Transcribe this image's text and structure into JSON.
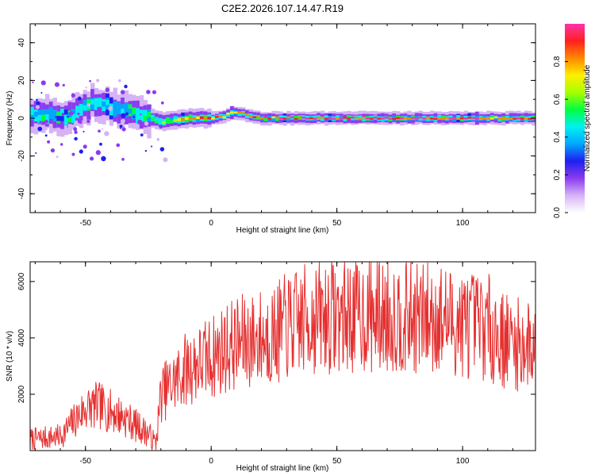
{
  "title": "C2E2.2026.107.14.47.R19",
  "colors": {
    "line": "#e53030",
    "axis": "#000000",
    "colormap": [
      "#ffffff",
      "#d6b3f5",
      "#8a3cf0",
      "#1f1ff0",
      "#00a6ff",
      "#00f0f0",
      "#00ff40",
      "#a8ff00",
      "#ffee00",
      "#ff8800",
      "#ff1f1f",
      "#ff33aa"
    ]
  },
  "chart_data": [
    {
      "type": "heatmap",
      "name": "spectrogram",
      "xlabel": "Height of straight line (km)",
      "ylabel": "Frequency (Hz)",
      "xlim": [
        -72,
        129
      ],
      "ylim": [
        -50,
        50
      ],
      "xticks": [
        -50,
        0,
        50,
        100
      ],
      "yticks": [
        -40,
        -20,
        0,
        20,
        40
      ],
      "xtick_labels": [
        "-50",
        "0",
        "50",
        "100"
      ],
      "ytick_labels": [
        "-40",
        "-20",
        "0",
        "20",
        "40"
      ],
      "ridge": {
        "x": [
          -72,
          -65,
          -60,
          -55,
          -52,
          -48,
          -45,
          -40,
          -35,
          -30,
          -25,
          -20,
          -15,
          -10,
          -5,
          0,
          5,
          7,
          10,
          15,
          20,
          30,
          50,
          70,
          90,
          110,
          129
        ],
        "y": [
          2,
          2,
          1,
          2,
          5,
          8,
          7,
          6,
          4,
          2,
          0,
          -2,
          -1,
          0,
          0,
          0,
          1,
          3,
          3,
          1,
          0,
          0,
          0,
          0,
          0,
          0,
          0
        ],
        "amplitude": [
          0.35,
          0.4,
          0.3,
          0.4,
          0.45,
          0.5,
          0.45,
          0.4,
          0.4,
          0.4,
          0.5,
          0.55,
          0.65,
          0.8,
          0.85,
          0.8,
          0.75,
          0.8,
          0.8,
          0.75,
          0.85,
          0.9,
          0.9,
          0.95,
          0.9,
          0.85,
          0.9
        ]
      },
      "colorbar": {
        "label": "Normalized spectral amplitude",
        "range": [
          0,
          1
        ],
        "ticks": [
          0.0,
          0.2,
          0.4,
          0.6,
          0.8
        ],
        "tick_labels": [
          "0.0",
          "0.2",
          "0.4",
          "0.6",
          "0.8"
        ]
      }
    },
    {
      "type": "line",
      "name": "snr",
      "xlabel": "Height of straight line (km)",
      "ylabel": "SNR (10 * v/v)",
      "xlim": [
        -72,
        129
      ],
      "ylim": [
        0,
        6700
      ],
      "xticks": [
        -50,
        0,
        50,
        100
      ],
      "yticks": [
        2000,
        4000,
        6000
      ],
      "xtick_labels": [
        "-50",
        "0",
        "50",
        "100"
      ],
      "ytick_labels": [
        "2000",
        "4000",
        "6000"
      ],
      "series": [
        {
          "name": "SNR",
          "envelope_x": [
            -72,
            -60,
            -55,
            -50,
            -45,
            -40,
            -35,
            -30,
            -25,
            -22,
            -20,
            -15,
            -10,
            -5,
            0,
            5,
            10,
            15,
            20,
            25,
            30,
            40,
            50,
            60,
            70,
            80,
            90,
            100,
            110,
            115,
            120,
            125,
            129
          ],
          "envelope_y": [
            400,
            500,
            1000,
            1500,
            1600,
            1400,
            1200,
            900,
            600,
            250,
            2000,
            2400,
            2900,
            3100,
            3300,
            3600,
            3800,
            3900,
            4000,
            4100,
            4400,
            4700,
            4800,
            4800,
            4800,
            4700,
            4700,
            4500,
            4400,
            4000,
            3800,
            3700,
            3800
          ]
        }
      ]
    }
  ]
}
